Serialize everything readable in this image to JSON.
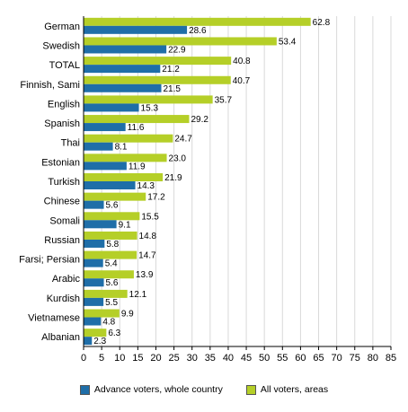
{
  "chart_data": {
    "type": "bar",
    "orientation": "horizontal",
    "categories": [
      "German",
      "Swedish",
      "TOTAL",
      "Finnish, Sami",
      "English",
      "Spanish",
      "Thai",
      "Estonian",
      "Turkish",
      "Chinese",
      "Somali",
      "Russian",
      "Farsi; Persian",
      "Arabic",
      "Kurdish",
      "Vietnamese",
      "Albanian"
    ],
    "series": [
      {
        "name": "Advance voters, whole country",
        "color": "#1f6ea8",
        "values": [
          28.6,
          22.9,
          21.2,
          21.5,
          15.3,
          11.6,
          8.1,
          11.9,
          14.3,
          5.6,
          9.1,
          5.8,
          5.4,
          5.6,
          5.5,
          4.8,
          2.3
        ],
        "labels": [
          "28.6",
          "22.9",
          "21.2",
          "21.5",
          "15.3",
          "11.6",
          "8.1",
          "11.9",
          "14.3",
          "5.6",
          "9.1",
          "5.8",
          "5.4",
          "5.6",
          "5.5",
          "4.8",
          "2.3"
        ]
      },
      {
        "name": "All voters, areas",
        "color": "#b5cf28",
        "values": [
          62.8,
          53.4,
          40.8,
          40.7,
          35.7,
          29.2,
          24.7,
          23.0,
          21.9,
          17.2,
          15.5,
          14.8,
          14.7,
          13.9,
          12.1,
          9.9,
          6.3
        ],
        "labels": [
          "62.8",
          "53.4",
          "40.8",
          "40.7",
          "35.7",
          "29.2",
          "24.7",
          "23.0",
          "21.9",
          "17.2",
          "15.5",
          "14.8",
          "14.7",
          "13.9",
          "12.1",
          "9.9",
          "6.3"
        ]
      }
    ],
    "xlim": [
      0,
      85
    ],
    "xticks": [
      "0",
      "5",
      "10",
      "15",
      "20",
      "25",
      "30",
      "35",
      "40",
      "45",
      "50",
      "55",
      "60",
      "65",
      "70",
      "75",
      "80",
      "85"
    ],
    "grid": true,
    "title": "",
    "xlabel": "",
    "ylabel": "",
    "legend_position": "bottom"
  }
}
